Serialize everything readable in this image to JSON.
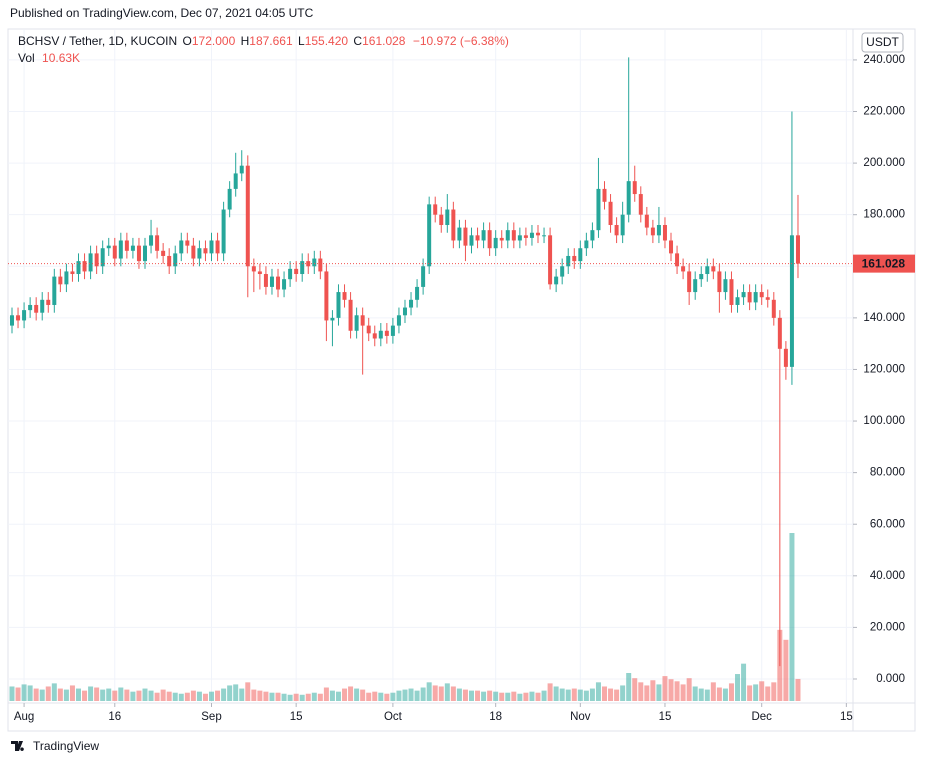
{
  "page": {
    "published": "Published on TradingView.com, Dec 07, 2021 04:05 UTC",
    "brand": "TradingView"
  },
  "chart_data": {
    "type": "candlestick",
    "header": {
      "symbol": "BCHSV / Tether, 1D, KUCOIN",
      "open_key": "O",
      "open": "172.000",
      "high_key": "H",
      "high": "187.661",
      "low_key": "L",
      "low": "155.420",
      "close_key": "C",
      "close": "161.028",
      "change": "−10.972 (−6.38%)"
    },
    "volume_name": "Vol",
    "volume_value_labels": {
      "130": "10.63K"
    },
    "currency": "USDT",
    "last_price": 161.028,
    "last_price_label": "161.028",
    "up_color": "#26a69a",
    "down_color": "#ef5350",
    "grid": true,
    "xlim": [
      -0.66,
      139.1
    ],
    "xticks": [
      {
        "value": 2,
        "label": "Aug"
      },
      {
        "value": 17,
        "label": "16"
      },
      {
        "value": 33,
        "label": "Sep"
      },
      {
        "value": 47,
        "label": "15"
      },
      {
        "value": 63,
        "label": "Oct"
      },
      {
        "value": 80,
        "label": "18"
      },
      {
        "value": 94,
        "label": "Nov"
      },
      {
        "value": 108,
        "label": "15"
      },
      {
        "value": 124,
        "label": "Dec"
      },
      {
        "value": 138,
        "label": "15"
      }
    ],
    "ylim": [
      -9.31,
      251.6
    ],
    "yticks": [
      {
        "value": 0,
        "label": "0.000"
      },
      {
        "value": 20,
        "label": "20.000"
      },
      {
        "value": 40,
        "label": "40.000"
      },
      {
        "value": 60,
        "label": "60.000"
      },
      {
        "value": 80,
        "label": "80.000"
      },
      {
        "value": 100,
        "label": "100.000"
      },
      {
        "value": 120,
        "label": "120.000"
      },
      {
        "value": 140,
        "label": "140.000"
      },
      {
        "value": 160,
        "label": "160.000"
      },
      {
        "value": 180,
        "label": "180.000"
      },
      {
        "value": 200,
        "label": "200.000"
      },
      {
        "value": 220,
        "label": "220.000"
      },
      {
        "value": 240,
        "label": "240.000"
      }
    ],
    "open": [
      137,
      141,
      139,
      143,
      145,
      142,
      147,
      145,
      156,
      153,
      158,
      157,
      162,
      158,
      165,
      160,
      167,
      168,
      163,
      170,
      166,
      168,
      162,
      168,
      172,
      166,
      164,
      160,
      165,
      170,
      168,
      163,
      167,
      165,
      170,
      165,
      182,
      190,
      196,
      199,
      160,
      158,
      157,
      152,
      156,
      151,
      155,
      159,
      157,
      162,
      160,
      163,
      158,
      139,
      140,
      150,
      147,
      135,
      141,
      137,
      134,
      132,
      135,
      133,
      137,
      141,
      144,
      147,
      152,
      160,
      184,
      180,
      176,
      182,
      170,
      175,
      168,
      172,
      170,
      174,
      167,
      171,
      170,
      174,
      170,
      172,
      171,
      173,
      172,
      172,
      153,
      156,
      160,
      164,
      162,
      167,
      170,
      174,
      190,
      185,
      176,
      172,
      180,
      193,
      188,
      180,
      175,
      172,
      176,
      170,
      165,
      160,
      158,
      150,
      155,
      157,
      160,
      158,
      150,
      155,
      145,
      148,
      150,
      146,
      150,
      148,
      147,
      140,
      128,
      121,
      172
    ],
    "high": [
      144,
      144,
      146,
      148,
      148,
      150,
      150,
      159,
      159,
      161,
      161,
      165,
      165,
      168,
      168,
      170,
      171,
      171,
      173,
      173,
      171,
      171,
      171,
      178,
      175,
      169,
      167,
      168,
      173,
      173,
      171,
      170,
      170,
      173,
      173,
      185,
      193,
      204,
      205,
      203,
      163,
      161,
      160,
      159,
      159,
      158,
      162,
      162,
      165,
      165,
      166,
      166,
      161,
      143,
      153,
      153,
      150,
      144,
      144,
      140,
      137,
      138,
      138,
      140,
      144,
      147,
      150,
      155,
      163,
      187,
      187,
      183,
      188,
      185,
      178,
      178,
      175,
      175,
      177,
      177,
      174,
      174,
      177,
      177,
      175,
      175,
      176,
      176,
      175,
      175,
      159,
      163,
      167,
      167,
      170,
      173,
      177,
      202,
      193,
      188,
      179,
      185,
      241,
      199,
      191,
      183,
      178,
      183,
      179,
      173,
      168,
      163,
      161,
      158,
      160,
      163,
      163,
      161,
      158,
      158,
      151,
      153,
      153,
      153,
      153,
      151,
      150,
      143,
      131,
      220,
      187.661
    ],
    "low": [
      134,
      136,
      136,
      140,
      139,
      139,
      142,
      142,
      150,
      150,
      154,
      154,
      155,
      155,
      157,
      157,
      164,
      160,
      160,
      163,
      163,
      159,
      159,
      165,
      163,
      161,
      157,
      157,
      162,
      165,
      160,
      160,
      162,
      162,
      162,
      162,
      179,
      187,
      193,
      148,
      150,
      151,
      149,
      149,
      148,
      148,
      152,
      154,
      154,
      157,
      157,
      155,
      131,
      129,
      137,
      144,
      132,
      132,
      118,
      131,
      129,
      129,
      130,
      130,
      134,
      138,
      141,
      144,
      149,
      157,
      177,
      173,
      173,
      167,
      167,
      162,
      165,
      167,
      167,
      164,
      164,
      167,
      167,
      167,
      167,
      168,
      168,
      169,
      169,
      151,
      150,
      153,
      157,
      159,
      159,
      164,
      167,
      171,
      182,
      173,
      169,
      169,
      177,
      185,
      177,
      172,
      169,
      169,
      167,
      162,
      157,
      155,
      145,
      147,
      152,
      154,
      155,
      142,
      147,
      142,
      142,
      145,
      143,
      143,
      145,
      144,
      137,
      5,
      116,
      114,
      155.42
    ],
    "close": [
      141,
      139,
      143,
      145,
      142,
      147,
      145,
      156,
      153,
      158,
      157,
      162,
      158,
      165,
      160,
      167,
      168,
      163,
      170,
      166,
      168,
      162,
      168,
      172,
      166,
      164,
      160,
      165,
      170,
      168,
      163,
      167,
      165,
      170,
      165,
      182,
      190,
      196,
      199,
      160,
      158,
      157,
      152,
      156,
      151,
      155,
      159,
      157,
      162,
      160,
      163,
      158,
      139,
      140,
      150,
      147,
      135,
      141,
      137,
      134,
      132,
      135,
      133,
      137,
      141,
      144,
      147,
      152,
      160,
      184,
      180,
      176,
      182,
      170,
      175,
      168,
      172,
      170,
      174,
      167,
      171,
      170,
      174,
      170,
      172,
      171,
      173,
      172,
      172,
      153,
      156,
      160,
      164,
      162,
      167,
      170,
      174,
      190,
      185,
      176,
      172,
      180,
      193,
      188,
      180,
      175,
      172,
      176,
      170,
      165,
      160,
      158,
      150,
      155,
      157,
      160,
      158,
      150,
      155,
      145,
      148,
      150,
      146,
      150,
      148,
      147,
      140,
      128,
      121,
      172,
      161.028
    ],
    "volume": [
      7000,
      6500,
      8000,
      7500,
      6000,
      5500,
      7000,
      8500,
      6000,
      5500,
      7500,
      6000,
      5000,
      7000,
      6500,
      5500,
      6000,
      5000,
      6500,
      5500,
      4500,
      5000,
      6000,
      5000,
      4000,
      5500,
      4500,
      4000,
      3500,
      4000,
      5000,
      4500,
      3500,
      4500,
      5000,
      6000,
      7500,
      8000,
      6000,
      9000,
      5500,
      5000,
      4500,
      4000,
      4000,
      3500,
      3000,
      3500,
      3000,
      3500,
      4000,
      3500,
      6500,
      5000,
      4500,
      6000,
      7000,
      6000,
      5500,
      4000,
      4500,
      4000,
      3500,
      4000,
      5000,
      5500,
      6000,
      5000,
      6500,
      9000,
      7500,
      7000,
      8500,
      7000,
      6000,
      5500,
      5000,
      5000,
      4500,
      5000,
      4500,
      4000,
      4000,
      4500,
      3500,
      4000,
      4500,
      4000,
      5000,
      8500,
      7000,
      6000,
      5500,
      6000,
      5500,
      5000,
      6000,
      9000,
      7000,
      6000,
      5500,
      7500,
      13500,
      11000,
      9000,
      7500,
      10000,
      8000,
      12000,
      10500,
      9500,
      8000,
      11000,
      7000,
      6000,
      5500,
      9000,
      6500,
      6000,
      8500,
      13000,
      18000,
      7500,
      8000,
      9500,
      7000,
      9000,
      34300,
      29500,
      81000,
      10630
    ]
  }
}
